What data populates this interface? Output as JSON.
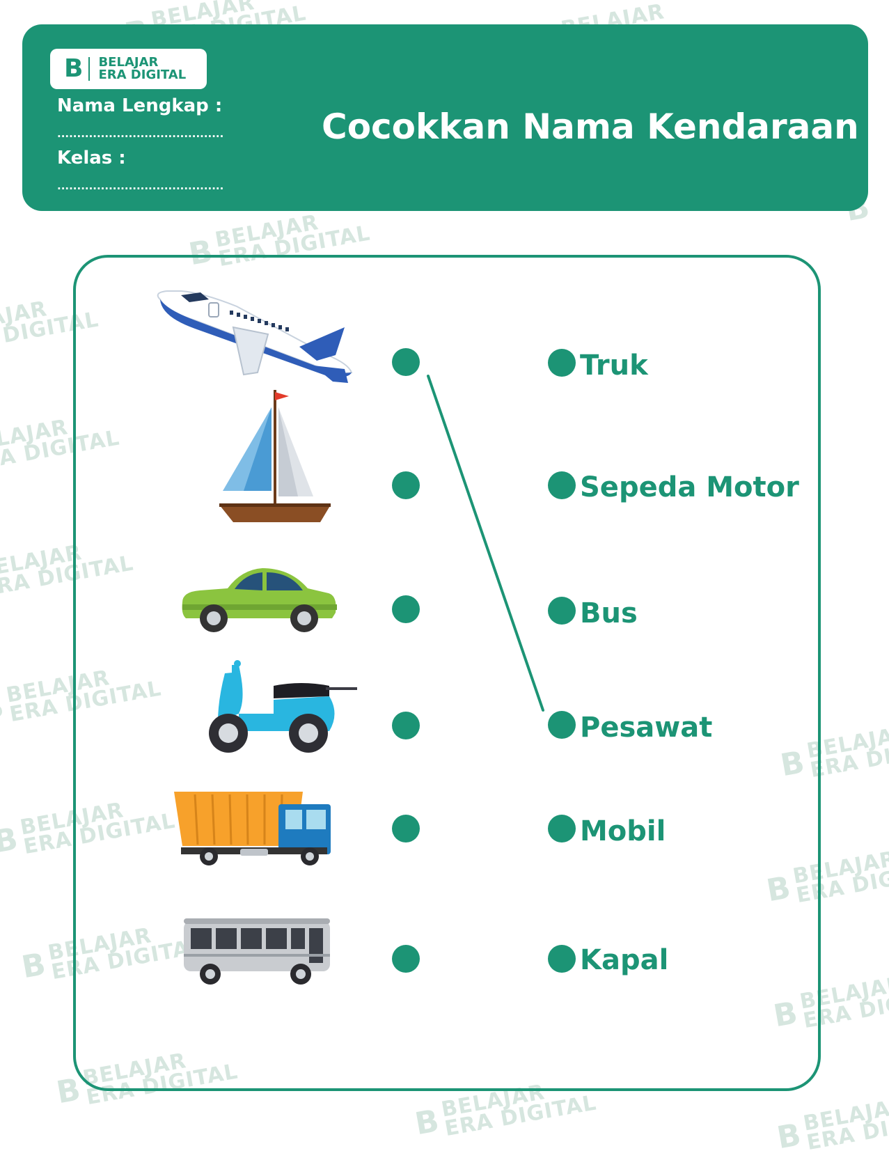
{
  "brand": {
    "logo_mark": "B",
    "line1": "BELAJAR",
    "line2": "ERA DIGITAL"
  },
  "header": {
    "name_label": "Nama Lengkap :",
    "class_label": "Kelas :",
    "name_dots": "..........................................",
    "class_dots": "..........................................",
    "title": "Cocokkan Nama Kendaraan"
  },
  "pictures": [
    {
      "icon": "airplane-icon"
    },
    {
      "icon": "sailboat-icon"
    },
    {
      "icon": "car-icon"
    },
    {
      "icon": "scooter-icon"
    },
    {
      "icon": "dump-truck-icon"
    },
    {
      "icon": "bus-icon"
    }
  ],
  "words": [
    "Truk",
    "Sepeda Motor",
    "Bus",
    "Pesawat",
    "Mobil",
    "Kapal"
  ],
  "example_match": {
    "picture_index": 0,
    "word_index": 3
  },
  "colors": {
    "primary": "#1c9475",
    "watermark": "#d6e6df",
    "white": "#ffffff"
  }
}
